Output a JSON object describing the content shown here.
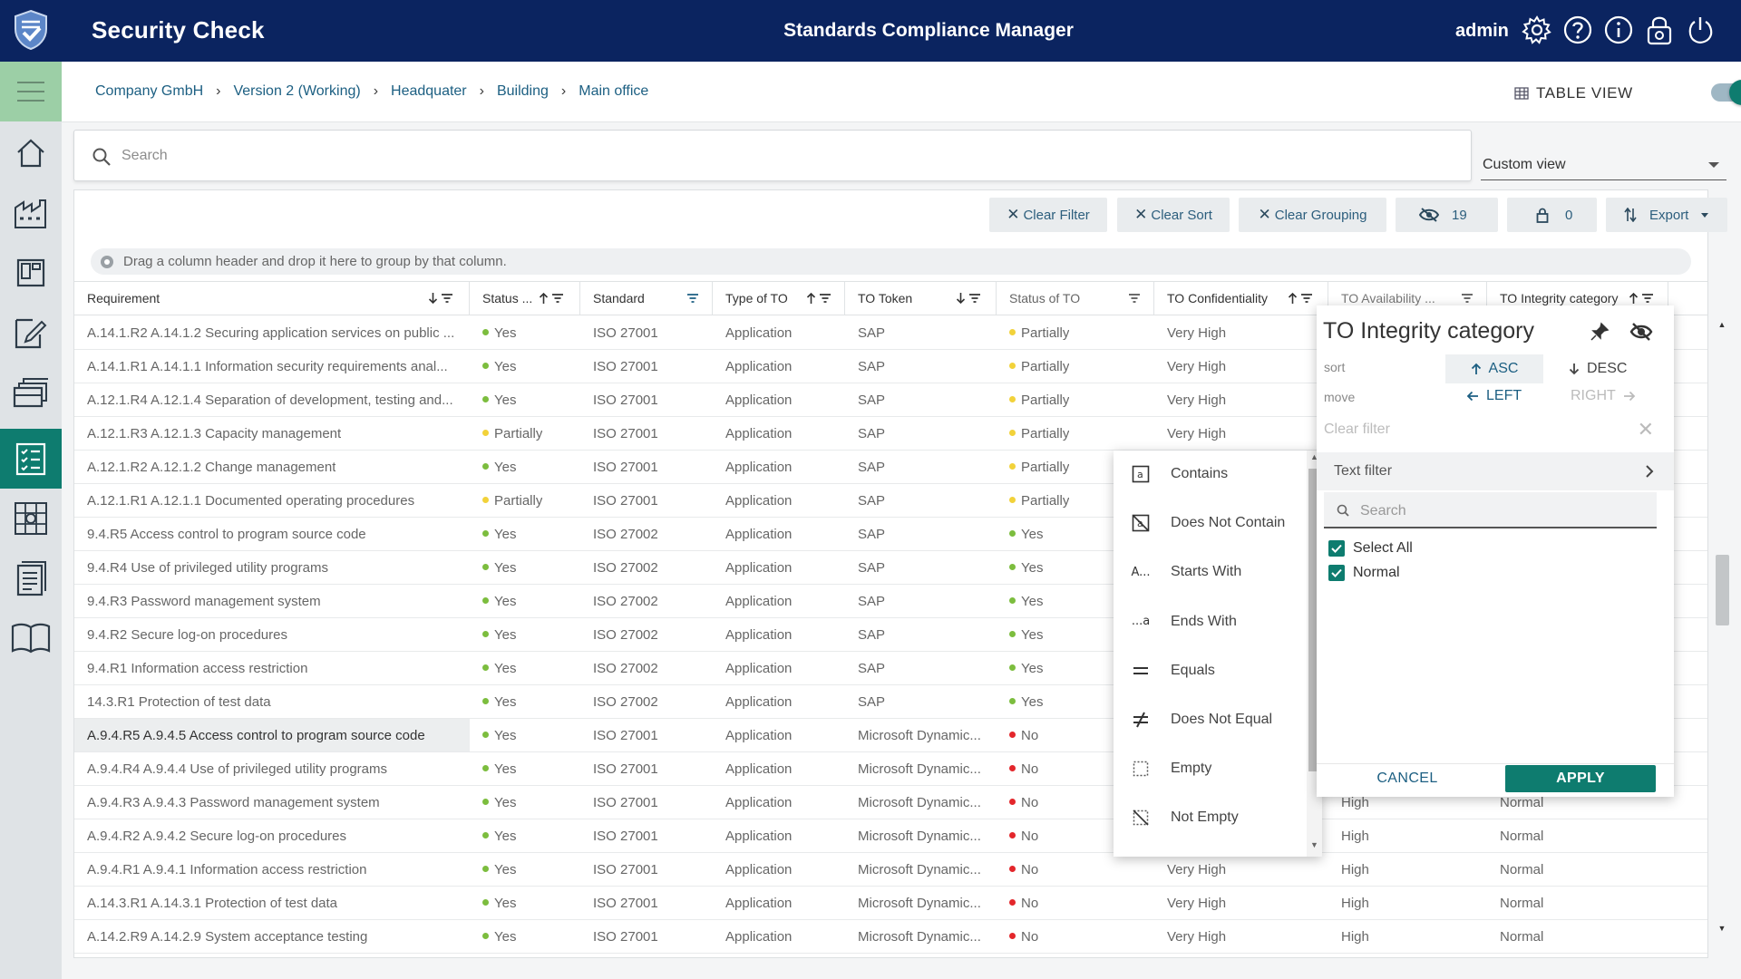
{
  "header": {
    "app_title": "Security Check",
    "center_title": "Standards Compliance Manager",
    "user": "admin",
    "icons": [
      "gear-icon",
      "help-icon",
      "info-icon",
      "lock-icon",
      "power-icon"
    ],
    "colors": {
      "bar": "#0b2460",
      "accent": "#0e7c6f",
      "nav_hamburger": "#9ccfa6"
    }
  },
  "nav": {
    "items": [
      "home-icon",
      "factory-icon",
      "layout-icon",
      "edit-doc-icon",
      "stack-icon",
      "checklist-icon",
      "grid-icon",
      "list-icon",
      "book-icon"
    ],
    "active": "checklist-icon"
  },
  "breadcrumb": [
    "Company GmbH",
    "Version 2 (Working)",
    "Headquater",
    "Building",
    "Main office"
  ],
  "table_view": {
    "label": "TABLE VIEW",
    "on": true
  },
  "search": {
    "placeholder": "Search"
  },
  "custom_view": "Custom view",
  "toolbar": {
    "clear_filter": "Clear Filter",
    "clear_sort": "Clear Sort",
    "clear_grouping": "Clear Grouping",
    "hidden_count": "19",
    "locked_count": "0",
    "export": "Export"
  },
  "group_hint": "Drag a column header and drop it here to group by that column.",
  "columns": [
    "Requirement",
    "Status ...",
    "Standard",
    "Type of TO",
    "TO Token",
    "Status of TO",
    "TO Confidentiality",
    "TO Availability ...",
    "TO Integrity category"
  ],
  "rows": [
    {
      "req": "A.14.1.R2 A.14.1.2 Securing application services on public ...",
      "status": "Yes",
      "standard": "ISO 27001",
      "type": "Application",
      "token": "SAP",
      "to_status": "Partially",
      "conf": "Very High",
      "avail": "",
      "integ": ""
    },
    {
      "req": "A.14.1.R1 A.14.1.1 Information security requirements anal...",
      "status": "Yes",
      "standard": "ISO 27001",
      "type": "Application",
      "token": "SAP",
      "to_status": "Partially",
      "conf": "Very High",
      "avail": "",
      "integ": ""
    },
    {
      "req": "A.12.1.R4 A.12.1.4 Separation of development, testing and...",
      "status": "Yes",
      "standard": "ISO 27001",
      "type": "Application",
      "token": "SAP",
      "to_status": "Partially",
      "conf": "Very High",
      "avail": "",
      "integ": ""
    },
    {
      "req": "A.12.1.R3 A.12.1.3 Capacity management",
      "status": "Partially",
      "standard": "ISO 27001",
      "type": "Application",
      "token": "SAP",
      "to_status": "Partially",
      "conf": "Very High",
      "avail": "",
      "integ": ""
    },
    {
      "req": "A.12.1.R2 A.12.1.2 Change management",
      "status": "Yes",
      "standard": "ISO 27001",
      "type": "Application",
      "token": "SAP",
      "to_status": "Partially",
      "conf": "",
      "avail": "",
      "integ": ""
    },
    {
      "req": "A.12.1.R1 A.12.1.1 Documented operating procedures",
      "status": "Partially",
      "standard": "ISO 27001",
      "type": "Application",
      "token": "SAP",
      "to_status": "Partially",
      "conf": "",
      "avail": "",
      "integ": ""
    },
    {
      "req": "9.4.R5 Access control to program source code",
      "status": "Yes",
      "standard": "ISO 27002",
      "type": "Application",
      "token": "SAP",
      "to_status": "Yes",
      "conf": "",
      "avail": "",
      "integ": ""
    },
    {
      "req": "9.4.R4 Use of privileged utility programs",
      "status": "Yes",
      "standard": "ISO 27002",
      "type": "Application",
      "token": "SAP",
      "to_status": "Yes",
      "conf": "",
      "avail": "",
      "integ": ""
    },
    {
      "req": "9.4.R3 Password management system",
      "status": "Yes",
      "standard": "ISO 27002",
      "type": "Application",
      "token": "SAP",
      "to_status": "Yes",
      "conf": "",
      "avail": "",
      "integ": ""
    },
    {
      "req": "9.4.R2 Secure log-on procedures",
      "status": "Yes",
      "standard": "ISO 27002",
      "type": "Application",
      "token": "SAP",
      "to_status": "Yes",
      "conf": "",
      "avail": "",
      "integ": ""
    },
    {
      "req": "9.4.R1 Information access restriction",
      "status": "Yes",
      "standard": "ISO 27002",
      "type": "Application",
      "token": "SAP",
      "to_status": "Yes",
      "conf": "",
      "avail": "",
      "integ": ""
    },
    {
      "req": "14.3.R1 Protection of test data",
      "status": "Yes",
      "standard": "ISO 27002",
      "type": "Application",
      "token": "SAP",
      "to_status": "Yes",
      "conf": "",
      "avail": "",
      "integ": ""
    },
    {
      "req": "A.9.4.R5 A.9.4.5 Access control to program source code",
      "status": "Yes",
      "standard": "ISO 27001",
      "type": "Application",
      "token": "Microsoft Dynamic...",
      "to_status": "No",
      "conf": "",
      "avail": "",
      "integ": "",
      "highlight": true
    },
    {
      "req": "A.9.4.R4 A.9.4.4 Use of privileged utility programs",
      "status": "Yes",
      "standard": "ISO 27001",
      "type": "Application",
      "token": "Microsoft Dynamic...",
      "to_status": "No",
      "conf": "",
      "avail": "",
      "integ": ""
    },
    {
      "req": "A.9.4.R3 A.9.4.3 Password management system",
      "status": "Yes",
      "standard": "ISO 27001",
      "type": "Application",
      "token": "Microsoft Dynamic...",
      "to_status": "No",
      "conf": "",
      "avail": "High",
      "integ": "Normal"
    },
    {
      "req": "A.9.4.R2 A.9.4.2 Secure log-on procedures",
      "status": "Yes",
      "standard": "ISO 27001",
      "type": "Application",
      "token": "Microsoft Dynamic...",
      "to_status": "No",
      "conf": "",
      "avail": "High",
      "integ": "Normal"
    },
    {
      "req": "A.9.4.R1 A.9.4.1 Information access restriction",
      "status": "Yes",
      "standard": "ISO 27001",
      "type": "Application",
      "token": "Microsoft Dynamic...",
      "to_status": "No",
      "conf": "Very High",
      "avail": "High",
      "integ": "Normal"
    },
    {
      "req": "A.14.3.R1 A.14.3.1 Protection of test data",
      "status": "Yes",
      "standard": "ISO 27001",
      "type": "Application",
      "token": "Microsoft Dynamic...",
      "to_status": "No",
      "conf": "Very High",
      "avail": "High",
      "integ": "Normal"
    },
    {
      "req": "A.14.2.R9 A.14.2.9 System acceptance testing",
      "status": "Yes",
      "standard": "ISO 27001",
      "type": "Application",
      "token": "Microsoft Dynamic...",
      "to_status": "No",
      "conf": "Very High",
      "avail": "High",
      "integ": "Normal"
    }
  ],
  "status_colors": {
    "Yes": "#7cbd3e",
    "Partially": "#f2d23a",
    "No": "#e3262b"
  },
  "column_menu": {
    "title": "TO Integrity category",
    "sort_label": "sort",
    "asc": "ASC",
    "desc": "DESC",
    "move_label": "move",
    "left": "LEFT",
    "right": "RIGHT",
    "clear_filter": "Clear filter",
    "text_filter": "Text filter",
    "search_placeholder": "Search",
    "options": [
      "Select All",
      "Normal"
    ],
    "cancel": "CANCEL",
    "apply": "APPLY"
  },
  "filter_ops": [
    {
      "label": "Contains",
      "icon": "contains-icon"
    },
    {
      "label": "Does Not Contain",
      "icon": "not-contains-icon"
    },
    {
      "label": "Starts With",
      "icon": "starts-with-icon"
    },
    {
      "label": "Ends With",
      "icon": "ends-with-icon"
    },
    {
      "label": "Equals",
      "icon": "equals-icon"
    },
    {
      "label": "Does Not Equal",
      "icon": "not-equal-icon"
    },
    {
      "label": "Empty",
      "icon": "empty-icon"
    },
    {
      "label": "Not Empty",
      "icon": "not-empty-icon"
    }
  ]
}
